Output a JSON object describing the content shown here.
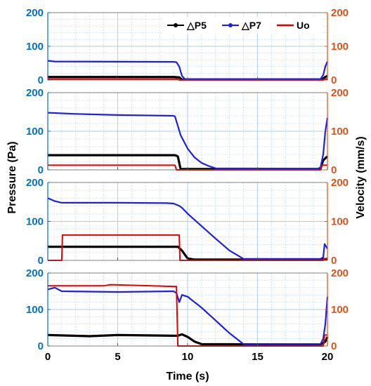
{
  "colors": {
    "left_axis": "#0072BD",
    "right_axis": "#D95319",
    "grid": "#aacde3",
    "dp5": "#000000",
    "dp7": "#1f1fe0",
    "uo": "#e00000"
  },
  "labels": {
    "xlabel": "Time (s)",
    "ylabel_left": "Pressure (Pa)",
    "ylabel_right": "Velocity (mm/s)"
  },
  "chart_data": [
    {
      "type": "line",
      "panel": 1,
      "xlim": [
        0,
        20
      ],
      "ylim_left": [
        0,
        200
      ],
      "ylim_right": [
        0,
        200
      ],
      "x_ticks": [
        "0",
        "5",
        "10",
        "15",
        "20"
      ],
      "left_ticks": [
        "0",
        "100",
        "200"
      ],
      "right_ticks": [
        "0",
        "100",
        "200"
      ],
      "grid": true,
      "legend_position": "top-right",
      "series": [
        {
          "name": "△P5",
          "key": "dp5",
          "axis": "left",
          "x": [
            0,
            9.0,
            9.4,
            9.6,
            19.6,
            19.8,
            20.0
          ],
          "values": [
            9,
            9,
            8,
            1,
            1,
            8,
            12
          ]
        },
        {
          "name": "△P7",
          "key": "dp7",
          "axis": "left",
          "x": [
            0,
            0.5,
            9.0,
            9.2,
            9.4,
            9.6,
            9.8,
            19.5,
            19.7,
            19.85,
            20.0
          ],
          "values": [
            57,
            55,
            54,
            53,
            40,
            12,
            3,
            3,
            15,
            40,
            55
          ]
        },
        {
          "name": "Uo",
          "key": "uo",
          "axis": "right",
          "x": [
            0,
            9.3,
            9.4,
            19.7,
            19.8,
            20.0
          ],
          "values": [
            3,
            3,
            0,
            0,
            3,
            3
          ]
        }
      ]
    },
    {
      "type": "line",
      "panel": 2,
      "xlim": [
        0,
        20
      ],
      "ylim_left": [
        0,
        200
      ],
      "ylim_right": [
        0,
        200
      ],
      "x_ticks": [
        "0",
        "5",
        "10",
        "15",
        "20"
      ],
      "left_ticks": [
        "0",
        "100",
        "200"
      ],
      "right_ticks": [
        "0",
        "100",
        "200"
      ],
      "grid": true,
      "series": [
        {
          "name": "△P5",
          "key": "dp5",
          "axis": "left",
          "x": [
            0,
            9.1,
            9.3,
            9.5,
            19.5,
            19.7,
            20.0
          ],
          "values": [
            38,
            38,
            35,
            2,
            2,
            25,
            35
          ]
        },
        {
          "name": "△P7",
          "key": "dp7",
          "axis": "left",
          "x": [
            0,
            2,
            5,
            9.0,
            9.1,
            9.5,
            10.0,
            10.5,
            11.0,
            11.5,
            12.0,
            19.3,
            19.5,
            19.7,
            19.85,
            20.0
          ],
          "values": [
            148,
            145,
            142,
            140,
            138,
            90,
            55,
            32,
            18,
            10,
            4,
            3,
            6,
            40,
            100,
            135
          ]
        },
        {
          "name": "Uo",
          "key": "uo",
          "axis": "right",
          "x": [
            0,
            9.1,
            9.2,
            19.5,
            19.6,
            20.0
          ],
          "values": [
            12,
            12,
            0,
            0,
            12,
            12
          ]
        }
      ]
    },
    {
      "type": "line",
      "panel": 3,
      "xlim": [
        0,
        20
      ],
      "ylim_left": [
        0,
        200
      ],
      "ylim_right": [
        0,
        200
      ],
      "x_ticks": [
        "0",
        "5",
        "10",
        "15",
        "20"
      ],
      "left_ticks": [
        "0",
        "100",
        "200"
      ],
      "right_ticks": [
        "0",
        "100",
        "200"
      ],
      "grid": true,
      "series": [
        {
          "name": "△P5",
          "key": "dp5",
          "axis": "left",
          "x": [
            0,
            9.0,
            9.3,
            9.6,
            10.0,
            10.5,
            19.5,
            19.7,
            20.0
          ],
          "values": [
            35,
            35,
            35,
            25,
            5,
            2,
            2,
            3,
            4
          ]
        },
        {
          "name": "△P7",
          "key": "dp7",
          "axis": "left",
          "x": [
            0,
            0.5,
            1.0,
            5,
            8.5,
            9.0,
            9.4,
            9.6,
            10.0,
            11.0,
            12.0,
            13.0,
            14.0,
            19.5,
            19.7,
            19.8,
            20.0
          ],
          "values": [
            160,
            152,
            148,
            148,
            147,
            146,
            140,
            135,
            120,
            88,
            56,
            25,
            4,
            4,
            8,
            42,
            30
          ]
        },
        {
          "name": "Uo",
          "key": "uo",
          "axis": "right",
          "x": [
            0,
            1.0,
            1.05,
            9.4,
            9.45,
            19.7,
            19.75,
            20.0
          ],
          "values": [
            0,
            0,
            65,
            65,
            0,
            0,
            4,
            4
          ]
        }
      ]
    },
    {
      "type": "line",
      "panel": 4,
      "xlim": [
        0,
        20
      ],
      "ylim_left": [
        0,
        200
      ],
      "ylim_right": [
        0,
        200
      ],
      "x_ticks": [
        "0",
        "5",
        "10",
        "15",
        "20"
      ],
      "left_ticks": [
        "0",
        "100",
        "200"
      ],
      "right_ticks": [
        "0",
        "100",
        "200"
      ],
      "grid": true,
      "series": [
        {
          "name": "△P5",
          "key": "dp5",
          "axis": "left",
          "x": [
            0,
            3,
            5,
            9.0,
            9.3,
            9.6,
            10.0,
            10.5,
            11.0,
            19.5,
            19.7,
            19.85,
            20.0
          ],
          "values": [
            30,
            27,
            30,
            28,
            28,
            32,
            25,
            12,
            5,
            4,
            8,
            12,
            25
          ]
        },
        {
          "name": "△P7",
          "key": "dp7",
          "axis": "left",
          "x": [
            0,
            0.5,
            1.0,
            5,
            9.0,
            9.2,
            9.4,
            9.6,
            10.0,
            11.0,
            12.0,
            13.0,
            14.0,
            19.5,
            19.7,
            19.85,
            20.0
          ],
          "values": [
            155,
            160,
            150,
            148,
            150,
            145,
            120,
            140,
            135,
            105,
            70,
            35,
            5,
            5,
            20,
            60,
            135
          ]
        },
        {
          "name": "Uo",
          "key": "uo",
          "axis": "right",
          "x": [
            0,
            4.0,
            4.5,
            9.2,
            9.3,
            19.7,
            19.8,
            20.0
          ],
          "values": [
            165,
            165,
            168,
            163,
            0,
            0,
            30,
            30
          ]
        }
      ]
    }
  ]
}
